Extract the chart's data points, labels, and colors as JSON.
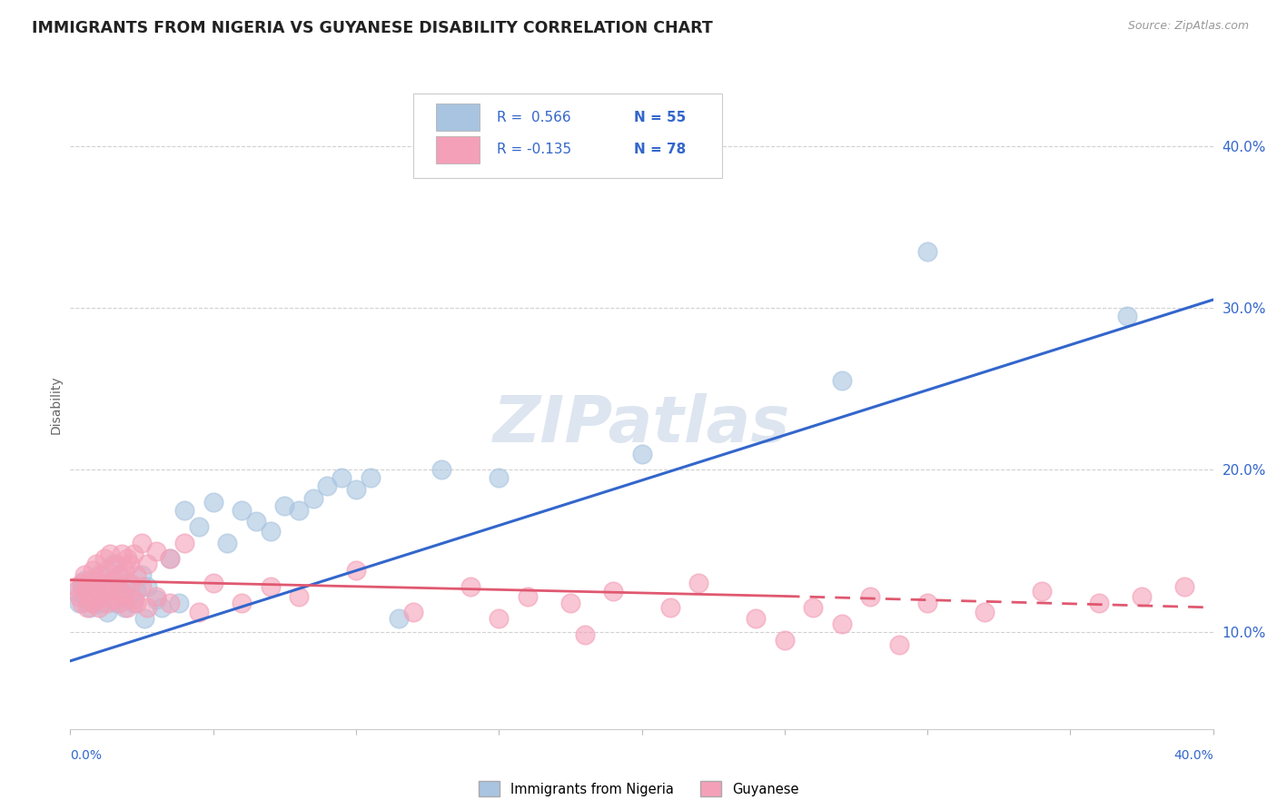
{
  "title": "IMMIGRANTS FROM NIGERIA VS GUYANESE DISABILITY CORRELATION CHART",
  "source": "Source: ZipAtlas.com",
  "ylabel": "Disability",
  "yticks": [
    0.1,
    0.2,
    0.3,
    0.4
  ],
  "ytick_labels": [
    "10.0%",
    "20.0%",
    "30.0%",
    "40.0%"
  ],
  "xrange": [
    0.0,
    0.4
  ],
  "yrange": [
    0.04,
    0.44
  ],
  "color_nigeria": "#a8c4e0",
  "color_guyanese": "#f4a0b8",
  "trendline_nigeria": [
    0.0,
    0.082,
    0.4,
    0.305
  ],
  "trendline_guyanese_solid": [
    0.0,
    0.132,
    0.25,
    0.122
  ],
  "trendline_guyanese_dashed": [
    0.25,
    0.122,
    0.4,
    0.115
  ],
  "watermark": "ZIPatlas",
  "nigeria_scatter": [
    [
      0.002,
      0.125
    ],
    [
      0.003,
      0.118
    ],
    [
      0.004,
      0.128
    ],
    [
      0.005,
      0.122
    ],
    [
      0.005,
      0.132
    ],
    [
      0.006,
      0.12
    ],
    [
      0.007,
      0.115
    ],
    [
      0.007,
      0.125
    ],
    [
      0.008,
      0.13
    ],
    [
      0.008,
      0.118
    ],
    [
      0.009,
      0.128
    ],
    [
      0.01,
      0.122
    ],
    [
      0.01,
      0.135
    ],
    [
      0.011,
      0.118
    ],
    [
      0.012,
      0.125
    ],
    [
      0.013,
      0.13
    ],
    [
      0.013,
      0.112
    ],
    [
      0.015,
      0.142
    ],
    [
      0.015,
      0.128
    ],
    [
      0.016,
      0.118
    ],
    [
      0.017,
      0.135
    ],
    [
      0.018,
      0.125
    ],
    [
      0.019,
      0.115
    ],
    [
      0.02,
      0.13
    ],
    [
      0.021,
      0.122
    ],
    [
      0.022,
      0.118
    ],
    [
      0.023,
      0.125
    ],
    [
      0.025,
      0.135
    ],
    [
      0.026,
      0.108
    ],
    [
      0.027,
      0.128
    ],
    [
      0.03,
      0.12
    ],
    [
      0.032,
      0.115
    ],
    [
      0.035,
      0.145
    ],
    [
      0.038,
      0.118
    ],
    [
      0.04,
      0.175
    ],
    [
      0.045,
      0.165
    ],
    [
      0.05,
      0.18
    ],
    [
      0.055,
      0.155
    ],
    [
      0.06,
      0.175
    ],
    [
      0.065,
      0.168
    ],
    [
      0.07,
      0.162
    ],
    [
      0.075,
      0.178
    ],
    [
      0.08,
      0.175
    ],
    [
      0.085,
      0.182
    ],
    [
      0.09,
      0.19
    ],
    [
      0.095,
      0.195
    ],
    [
      0.1,
      0.188
    ],
    [
      0.105,
      0.195
    ],
    [
      0.115,
      0.108
    ],
    [
      0.13,
      0.2
    ],
    [
      0.15,
      0.195
    ],
    [
      0.2,
      0.21
    ],
    [
      0.27,
      0.255
    ],
    [
      0.37,
      0.295
    ],
    [
      0.3,
      0.335
    ]
  ],
  "guyanese_scatter": [
    [
      0.002,
      0.128
    ],
    [
      0.003,
      0.122
    ],
    [
      0.004,
      0.13
    ],
    [
      0.004,
      0.118
    ],
    [
      0.005,
      0.125
    ],
    [
      0.005,
      0.135
    ],
    [
      0.006,
      0.115
    ],
    [
      0.006,
      0.128
    ],
    [
      0.007,
      0.132
    ],
    [
      0.007,
      0.12
    ],
    [
      0.008,
      0.138
    ],
    [
      0.008,
      0.118
    ],
    [
      0.009,
      0.125
    ],
    [
      0.009,
      0.142
    ],
    [
      0.01,
      0.128
    ],
    [
      0.01,
      0.115
    ],
    [
      0.011,
      0.135
    ],
    [
      0.011,
      0.122
    ],
    [
      0.012,
      0.13
    ],
    [
      0.012,
      0.145
    ],
    [
      0.013,
      0.118
    ],
    [
      0.013,
      0.138
    ],
    [
      0.014,
      0.125
    ],
    [
      0.014,
      0.148
    ],
    [
      0.015,
      0.132
    ],
    [
      0.015,
      0.12
    ],
    [
      0.016,
      0.142
    ],
    [
      0.016,
      0.128
    ],
    [
      0.017,
      0.135
    ],
    [
      0.017,
      0.118
    ],
    [
      0.018,
      0.148
    ],
    [
      0.018,
      0.125
    ],
    [
      0.019,
      0.138
    ],
    [
      0.019,
      0.122
    ],
    [
      0.02,
      0.145
    ],
    [
      0.02,
      0.115
    ],
    [
      0.021,
      0.13
    ],
    [
      0.021,
      0.142
    ],
    [
      0.022,
      0.12
    ],
    [
      0.022,
      0.148
    ],
    [
      0.023,
      0.135
    ],
    [
      0.023,
      0.118
    ],
    [
      0.025,
      0.155
    ],
    [
      0.025,
      0.128
    ],
    [
      0.027,
      0.142
    ],
    [
      0.027,
      0.115
    ],
    [
      0.03,
      0.15
    ],
    [
      0.03,
      0.122
    ],
    [
      0.035,
      0.145
    ],
    [
      0.035,
      0.118
    ],
    [
      0.04,
      0.155
    ],
    [
      0.045,
      0.112
    ],
    [
      0.05,
      0.13
    ],
    [
      0.06,
      0.118
    ],
    [
      0.07,
      0.128
    ],
    [
      0.08,
      0.122
    ],
    [
      0.1,
      0.138
    ],
    [
      0.12,
      0.112
    ],
    [
      0.14,
      0.128
    ],
    [
      0.15,
      0.108
    ],
    [
      0.16,
      0.122
    ],
    [
      0.175,
      0.118
    ],
    [
      0.19,
      0.125
    ],
    [
      0.21,
      0.115
    ],
    [
      0.22,
      0.13
    ],
    [
      0.24,
      0.108
    ],
    [
      0.26,
      0.115
    ],
    [
      0.28,
      0.122
    ],
    [
      0.3,
      0.118
    ],
    [
      0.32,
      0.112
    ],
    [
      0.34,
      0.125
    ],
    [
      0.36,
      0.118
    ],
    [
      0.375,
      0.122
    ],
    [
      0.39,
      0.128
    ],
    [
      0.18,
      0.098
    ],
    [
      0.25,
      0.095
    ],
    [
      0.27,
      0.105
    ],
    [
      0.29,
      0.092
    ]
  ],
  "background_color": "#ffffff",
  "grid_color": "#cccccc"
}
